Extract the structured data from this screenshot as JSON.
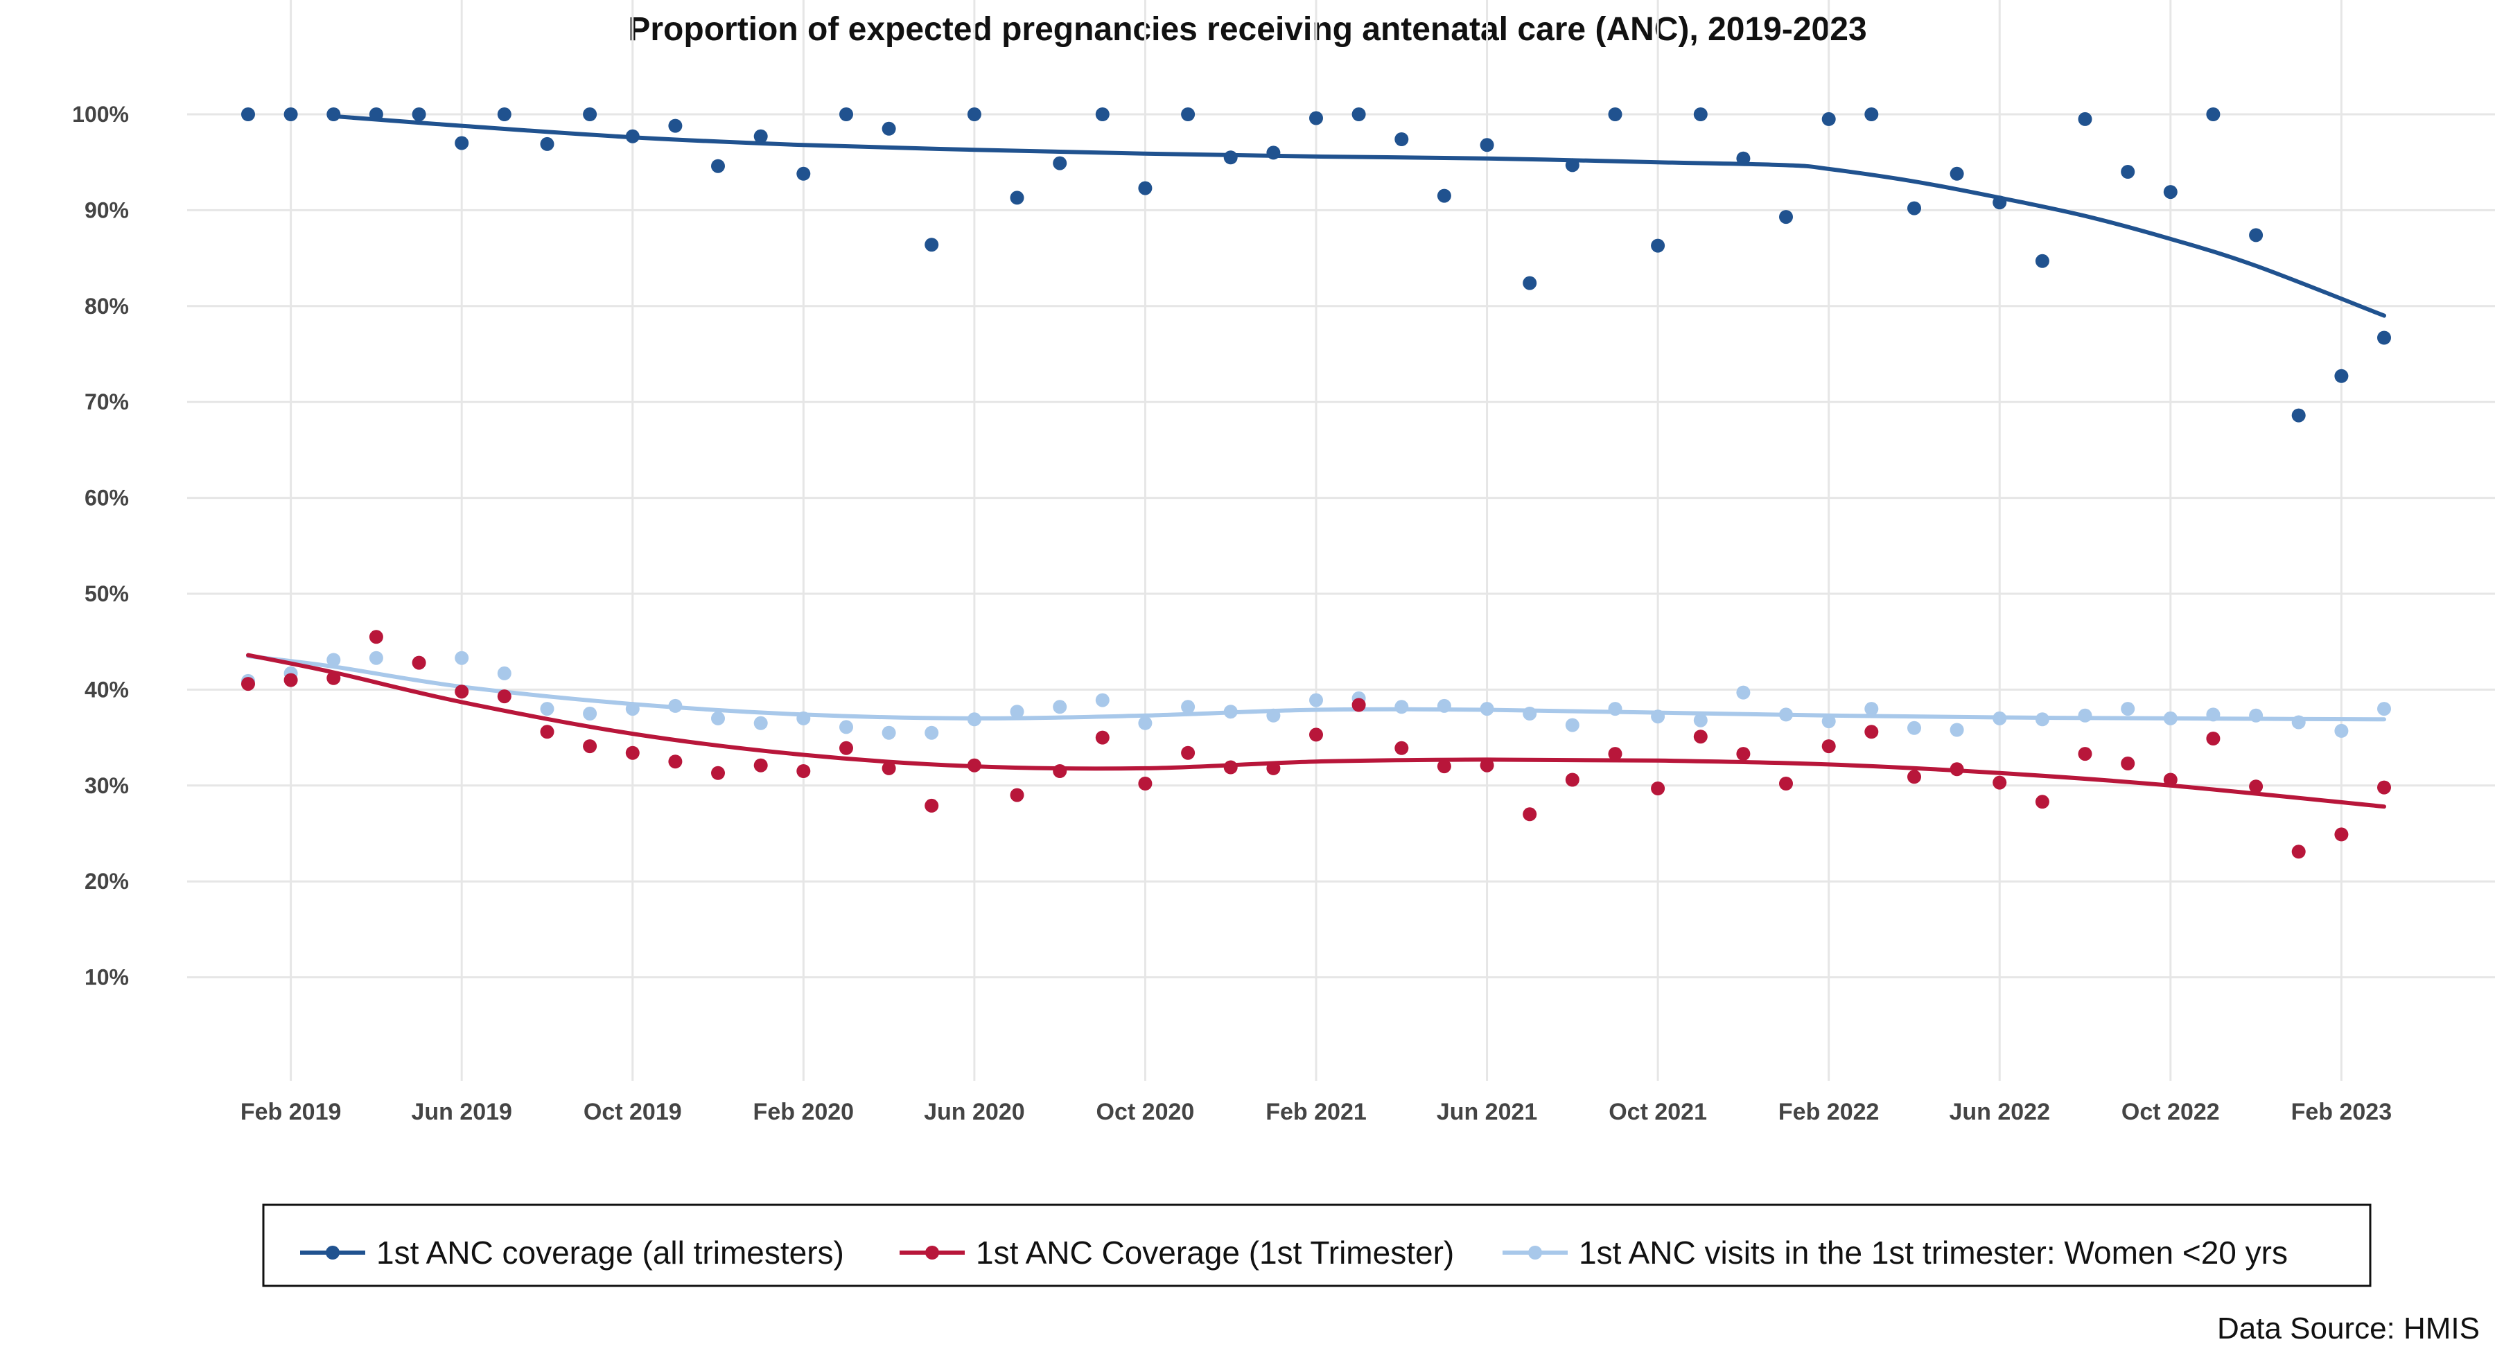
{
  "chart_data": {
    "type": "scatter",
    "title": "Proportion of expected pregnancies receiving antenatal care (ANC), 2019-2023",
    "xlabel": "",
    "ylabel": "",
    "x_ticks": [
      "Feb 2019",
      "Jun 2019",
      "Oct 2019",
      "Feb 2020",
      "Jun 2020",
      "Oct 2020",
      "Feb 2021",
      "Jun 2021",
      "Oct 2021",
      "Feb 2022",
      "Jun 2022",
      "Oct 2022",
      "Feb 2023"
    ],
    "y_ticks": [
      "10%",
      "20%",
      "30%",
      "40%",
      "50%",
      "60%",
      "70%",
      "80%",
      "90%",
      "100%"
    ],
    "xlim": [
      "2019-01",
      "2023-03"
    ],
    "ylim": [
      0,
      100
    ],
    "grid": true,
    "legend_position": "bottom",
    "x": [
      "2019-01",
      "2019-02",
      "2019-03",
      "2019-04",
      "2019-05",
      "2019-06",
      "2019-07",
      "2019-08",
      "2019-09",
      "2019-10",
      "2019-11",
      "2019-12",
      "2020-01",
      "2020-02",
      "2020-03",
      "2020-04",
      "2020-05",
      "2020-06",
      "2020-07",
      "2020-08",
      "2020-09",
      "2020-10",
      "2020-11",
      "2020-12",
      "2021-01",
      "2021-02",
      "2021-03",
      "2021-04",
      "2021-05",
      "2021-06",
      "2021-07",
      "2021-08",
      "2021-09",
      "2021-10",
      "2021-11",
      "2021-12",
      "2022-01",
      "2022-02",
      "2022-03",
      "2022-04",
      "2022-05",
      "2022-06",
      "2022-07",
      "2022-08",
      "2022-09",
      "2022-10",
      "2022-11",
      "2022-12",
      "2023-01",
      "2023-02",
      "2023-03"
    ],
    "series": [
      {
        "name": "1st ANC coverage (all trimesters)",
        "color": "#20528f",
        "values": [
          100,
          100,
          100,
          100,
          100,
          97,
          100,
          96.9,
          100,
          97.7,
          98.8,
          94.6,
          97.7,
          93.8,
          100,
          98.5,
          86.4,
          100,
          91.3,
          94.9,
          100,
          92.3,
          100,
          95.5,
          96,
          99.6,
          100,
          97.4,
          91.5,
          96.8,
          82.4,
          94.7,
          100,
          86.3,
          100,
          95.4,
          89.3,
          99.5,
          100,
          90.2,
          93.8,
          90.8,
          84.7,
          99.5,
          94,
          91.9,
          100,
          87.4,
          68.6,
          72.7,
          76.7
        ],
        "trend_x": [
          "2019-03",
          "2019-06",
          "2019-10",
          "2020-02",
          "2020-06",
          "2020-10",
          "2021-02",
          "2021-06",
          "2021-10",
          "2022-01",
          "2022-02",
          "2022-04",
          "2022-06",
          "2022-08",
          "2022-10",
          "2022-12",
          "2023-03"
        ],
        "trend": [
          99.8,
          98.8,
          97.6,
          96.8,
          96.3,
          95.9,
          95.6,
          95.4,
          95,
          94.7,
          94.3,
          93,
          91.3,
          89.4,
          87,
          84.2,
          79
        ]
      },
      {
        "name": "1st ANC Coverage (1st Trimester)",
        "color": "#b8163a",
        "values": [
          40.6,
          41,
          41.2,
          45.5,
          42.8,
          39.8,
          39.3,
          35.6,
          34.1,
          33.4,
          32.5,
          31.3,
          32.1,
          31.5,
          33.9,
          31.8,
          27.9,
          32.1,
          29,
          31.5,
          35,
          30.2,
          33.4,
          31.9,
          31.8,
          35.3,
          38.4,
          33.9,
          32,
          32.1,
          27,
          30.6,
          33.3,
          29.7,
          35.1,
          33.3,
          30.2,
          34.1,
          35.6,
          30.9,
          31.7,
          30.3,
          28.3,
          33.3,
          32.3,
          30.6,
          34.9,
          29.9,
          23.1,
          24.9,
          29.8
        ],
        "trend_x": [
          "2019-01",
          "2019-03",
          "2019-06",
          "2019-10",
          "2020-02",
          "2020-06",
          "2020-10",
          "2021-02",
          "2021-06",
          "2021-10",
          "2022-02",
          "2022-06",
          "2022-10",
          "2023-03"
        ],
        "trend": [
          43.6,
          41.8,
          38.7,
          35.4,
          33.2,
          32,
          31.8,
          32.5,
          32.7,
          32.6,
          32.2,
          31.3,
          30,
          27.8
        ]
      },
      {
        "name": "1st ANC visits in the 1st trimester: Women <20 yrs",
        "color": "#a8c8ea",
        "values": [
          40.9,
          41.7,
          43.1,
          43.3,
          42.8,
          43.3,
          41.7,
          38,
          37.5,
          38,
          38.3,
          37,
          36.5,
          37,
          36.1,
          35.5,
          35.5,
          36.9,
          37.7,
          38.2,
          38.9,
          36.5,
          38.2,
          37.7,
          37.3,
          38.9,
          39.1,
          38.2,
          38.3,
          38,
          37.5,
          36.3,
          38,
          37.2,
          36.8,
          39.7,
          37.4,
          36.7,
          38,
          36,
          35.8,
          37,
          36.9,
          37.3,
          38,
          37,
          37.4,
          37.3,
          36.6,
          35.7,
          38
        ],
        "trend_x": [
          "2019-01",
          "2019-03",
          "2019-06",
          "2019-10",
          "2020-02",
          "2020-06",
          "2020-10",
          "2021-02",
          "2021-06",
          "2021-10",
          "2022-02",
          "2022-06",
          "2022-10",
          "2023-03"
        ],
        "trend": [
          43.5,
          42.4,
          40.3,
          38.5,
          37.4,
          37,
          37.3,
          37.9,
          37.9,
          37.6,
          37.3,
          37.1,
          37,
          36.9
        ]
      }
    ]
  },
  "source_note": "Data Source: HMIS"
}
